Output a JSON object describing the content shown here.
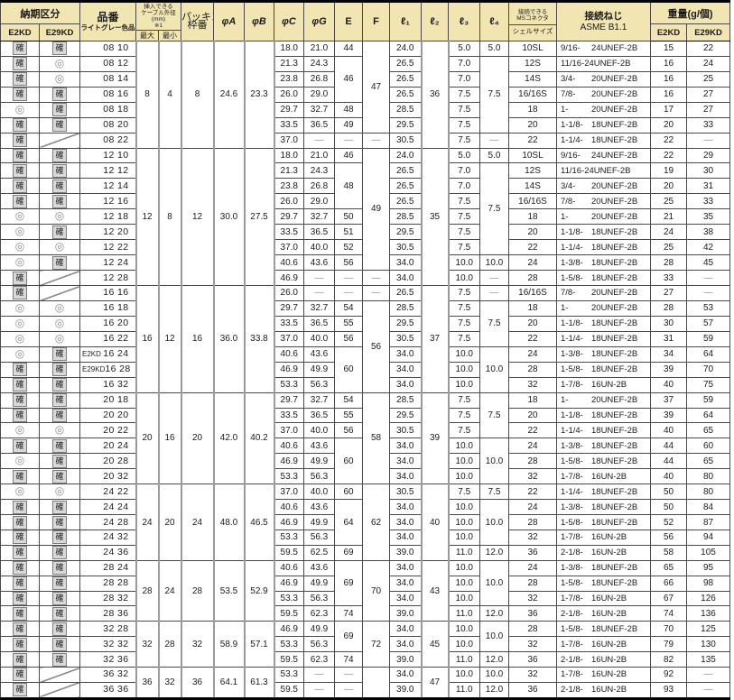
{
  "header": {
    "delivery_category": "納期区分",
    "delivery_e2kd": "E2KD",
    "delivery_e29kd": "E29KD",
    "part_no": "品番",
    "part_no_sub": "ライトグレー色品",
    "cable_line1": "挿入できる",
    "cable_line2": "ケーブル外径",
    "cable_line3": "(mm)",
    "cable_line4": "※1",
    "cable_max": "最大",
    "cable_min": "最小",
    "packing_line1": "パッキン",
    "packing_line2": "枠番",
    "phi_a": "φA",
    "phi_b": "φB",
    "phi_c": "φC",
    "phi_g": "φG",
    "dim_e": "E",
    "dim_f": "F",
    "l1": "ℓ₁",
    "l2": "ℓ₂",
    "l3": "ℓ₃",
    "l4": "ℓ₄",
    "ms_line1": "接続できる",
    "ms_line2": "MSコネクタ",
    "ms_shell": "シェルサイズ",
    "screw_line1": "接続ねじ",
    "screw_line2": "ASME B1.1",
    "weight": "重量(g/個)",
    "weight_e2kd": "E2KD",
    "weight_e29kd": "E29KD"
  },
  "symbols": {
    "kaku": "確",
    "circle": "◎"
  },
  "colors": {
    "header_bg": "#F1E6B2",
    "mark_box_bg": "#D9D9D9",
    "dash": "#8A8A8A",
    "border": "#4A4A4A"
  },
  "groups": [
    {
      "max": "8",
      "min": "4",
      "pack": "8",
      "pa": "24.6",
      "pb": "23.3",
      "l2": "36",
      "rows": [
        {
          "m1": "kaku",
          "m2": "kaku",
          "num": "08 10",
          "pc": "18.0",
          "pg": "21.0",
          "e": {
            "v": "44"
          },
          "f": {
            "v": "47",
            "rs": 6
          },
          "l1": "24.0",
          "l3": "5.0",
          "l4": {
            "v": "5.0"
          },
          "sh": "10SL",
          "th": "9/16- 24UNEF-2B",
          "w1": "15",
          "w2": "22"
        },
        {
          "m1": "kaku",
          "m2": "circle",
          "num": "08 12",
          "pc": "21.3",
          "pg": "24.3",
          "e": {
            "v": "46",
            "rs": 3
          },
          "l1": "26.5",
          "l3": "7.0",
          "l4": {
            "v": "7.5",
            "rs": 5
          },
          "sh": "12S",
          "th": "11/16-24UNEF-2B",
          "w1": "16",
          "w2": "24"
        },
        {
          "m1": "kaku",
          "m2": "circle",
          "num": "08 14",
          "pc": "23.8",
          "pg": "26.8",
          "l1": "26.5",
          "l3": "7.0",
          "sh": "14S",
          "th": "3/4- 20UNEF-2B",
          "w1": "16",
          "w2": "25"
        },
        {
          "m1": "kaku",
          "m2": "kaku",
          "num": "08 16",
          "pc": "26.0",
          "pg": "29.0",
          "l1": "26.5",
          "l3": "7.5",
          "sh": "16/16S",
          "th": "7/8- 20UNEF-2B",
          "w1": "16",
          "w2": "27"
        },
        {
          "m1": "circle",
          "m2": "kaku",
          "num": "08 18",
          "pc": "29.7",
          "pg": "32.7",
          "e": {
            "v": "48"
          },
          "l1": "28.5",
          "l3": "7.5",
          "sh": "18",
          "th": "1- 20UNEF-2B",
          "w1": "17",
          "w2": "27"
        },
        {
          "m1": "kaku",
          "m2": "kaku",
          "num": "08 20",
          "pc": "33.5",
          "pg": "36.5",
          "e": {
            "v": "49"
          },
          "l1": "29.5",
          "l3": "7.5",
          "sh": "20",
          "th": "1-1/8- 18UNEF-2B",
          "w1": "20",
          "w2": "33"
        },
        {
          "m1": "kaku",
          "m2": "slash",
          "num": "08 22",
          "pc": "37.0",
          "pg": "—",
          "e": {
            "v": "—"
          },
          "f": {
            "v": "—"
          },
          "l1": "30.5",
          "l3": "7.5",
          "l4": {
            "v": "—"
          },
          "sh": "22",
          "th": "1-1/4- 18UNEF-2B",
          "w1": "22",
          "w2": "—"
        }
      ]
    },
    {
      "max": "12",
      "min": "8",
      "pack": "12",
      "pa": "30.0",
      "pb": "27.5",
      "l2": "35",
      "rows": [
        {
          "m1": "kaku",
          "m2": "kaku",
          "num": "12 10",
          "pc": "18.0",
          "pg": "21.0",
          "e": {
            "v": "46"
          },
          "f": {
            "v": "49",
            "rs": 8
          },
          "l1": "24.0",
          "l3": "5.0",
          "l4": {
            "v": "5.0"
          },
          "sh": "10SL",
          "th": "9/16- 24UNEF-2B",
          "w1": "22",
          "w2": "29"
        },
        {
          "m1": "kaku",
          "m2": "kaku",
          "num": "12 12",
          "pc": "21.3",
          "pg": "24.3",
          "e": {
            "v": "48",
            "rs": 3
          },
          "l1": "26.5",
          "l3": "7.0",
          "l4": {
            "v": "7.5",
            "rs": 6
          },
          "sh": "12S",
          "th": "11/16-24UNEF-2B",
          "w1": "19",
          "w2": "30"
        },
        {
          "m1": "kaku",
          "m2": "kaku",
          "num": "12 14",
          "pc": "23.8",
          "pg": "26.8",
          "l1": "26.5",
          "l3": "7.0",
          "sh": "14S",
          "th": "3/4- 20UNEF-2B",
          "w1": "20",
          "w2": "31"
        },
        {
          "m1": "kaku",
          "m2": "kaku",
          "num": "12 16",
          "pc": "26.0",
          "pg": "29.0",
          "l1": "26.5",
          "l3": "7.5",
          "sh": "16/16S",
          "th": "7/8- 20UNEF-2B",
          "w1": "25",
          "w2": "33"
        },
        {
          "m1": "circle",
          "m2": "circle",
          "num": "12 18",
          "pc": "29.7",
          "pg": "32.7",
          "e": {
            "v": "50"
          },
          "l1": "28.5",
          "l3": "7.5",
          "sh": "18",
          "th": "1- 20UNEF-2B",
          "w1": "21",
          "w2": "35"
        },
        {
          "m1": "circle",
          "m2": "kaku",
          "num": "12 20",
          "pc": "33.5",
          "pg": "36.5",
          "e": {
            "v": "51"
          },
          "l1": "29.5",
          "l3": "7.5",
          "sh": "20",
          "th": "1-1/8- 18UNEF-2B",
          "w1": "24",
          "w2": "38"
        },
        {
          "m1": "circle",
          "m2": "circle",
          "num": "12 22",
          "pc": "37.0",
          "pg": "40.0",
          "e": {
            "v": "52"
          },
          "l1": "30.5",
          "l3": "7.5",
          "sh": "22",
          "th": "1-1/4- 18UNEF-2B",
          "w1": "25",
          "w2": "42"
        },
        {
          "m1": "circle",
          "m2": "kaku",
          "num": "12 24",
          "pc": "40.6",
          "pg": "43.6",
          "e": {
            "v": "56"
          },
          "l1": "34.0",
          "l3": "10.0",
          "l4": {
            "v": "10.0"
          },
          "sh": "24",
          "th": "1-3/8- 18UNEF-2B",
          "w1": "28",
          "w2": "45"
        },
        {
          "m1": "kaku",
          "m2": "slash",
          "num": "12 28",
          "pc": "46.9",
          "pg": "—",
          "e": {
            "v": "—"
          },
          "f": {
            "v": "—"
          },
          "l1": "34.0",
          "l3": "10.0",
          "l4": {
            "v": "—"
          },
          "sh": "28",
          "th": "1-5/8- 18UNEF-2B",
          "w1": "33",
          "w2": "—"
        }
      ]
    },
    {
      "max": "16",
      "min": "12",
      "pack": "16",
      "pa": "36.0",
      "pb": "33.8",
      "l2": "37",
      "rows": [
        {
          "m1": "kaku",
          "m2": "slash",
          "num": "16 16",
          "pc": "26.0",
          "pg": "—",
          "e": {
            "v": "—"
          },
          "f": {
            "v": "—"
          },
          "l1": "26.5",
          "l3": "7.5",
          "l4": {
            "v": "—"
          },
          "sh": "16/16S",
          "th": "7/8- 20UNEF-2B",
          "w1": "27",
          "w2": "—"
        },
        {
          "m1": "circle",
          "m2": "circle",
          "num": "16 18",
          "pc": "29.7",
          "pg": "32.7",
          "e": {
            "v": "54"
          },
          "f": {
            "v": "56",
            "rs": 6
          },
          "l1": "28.5",
          "l3": "7.5",
          "l4": {
            "v": "7.5",
            "rs": 3
          },
          "sh": "18",
          "th": "1- 20UNEF-2B",
          "w1": "28",
          "w2": "53"
        },
        {
          "m1": "circle",
          "m2": "circle",
          "num": "16 20",
          "pc": "33.5",
          "pg": "36.5",
          "e": {
            "v": "55"
          },
          "l1": "29.5",
          "l3": "7.5",
          "sh": "20",
          "th": "1-1/8- 18UNEF-2B",
          "w1": "30",
          "w2": "57"
        },
        {
          "m1": "circle",
          "m2": "circle",
          "num": "16 22",
          "pc": "37.0",
          "pg": "40.0",
          "e": {
            "v": "56"
          },
          "l1": "30.5",
          "l3": "7.5",
          "sh": "22",
          "th": "1-1/4- 18UNEF-2B",
          "w1": "31",
          "w2": "59"
        },
        {
          "m1": "circle",
          "m2": "kaku",
          "num": "16 24",
          "pfx": "E2KD",
          "pc": "40.6",
          "pg": "43.6",
          "e": {
            "v": "60",
            "rs": 3
          },
          "l1": "34.0",
          "l3": "10.0",
          "l4": {
            "v": "10.0",
            "rs": 3
          },
          "sh": "24",
          "th": "1-3/8- 18UNEF-2B",
          "w1": "34",
          "w2": "64"
        },
        {
          "m1": "kaku",
          "m2": "kaku",
          "num": "16 28",
          "pfx": "E29KD",
          "pc": "46.9",
          "pg": "49.9",
          "l1": "34.0",
          "l3": "10.0",
          "sh": "28",
          "th": "1-5/8- 18UNEF-2B",
          "w1": "39",
          "w2": "70"
        },
        {
          "m1": "kaku",
          "m2": "kaku",
          "num": "16 32",
          "pc": "53.3",
          "pg": "56.3",
          "l1": "34.0",
          "l3": "10.0",
          "sh": "32",
          "th": "1-7/8- 16UN-2B",
          "w1": "40",
          "w2": "75"
        }
      ]
    },
    {
      "max": "20",
      "min": "16",
      "pack": "20",
      "pa": "42.0",
      "pb": "40.2",
      "l2": "39",
      "rows": [
        {
          "m1": "kaku",
          "m2": "kaku",
          "num": "20 18",
          "pc": "29.7",
          "pg": "32.7",
          "e": {
            "v": "54"
          },
          "f": {
            "v": "58",
            "rs": 6
          },
          "l1": "28.5",
          "l3": "7.5",
          "l4": {
            "v": "7.5",
            "rs": 3
          },
          "sh": "18",
          "th": "1- 20UNEF-2B",
          "w1": "37",
          "w2": "59"
        },
        {
          "m1": "kaku",
          "m2": "kaku",
          "num": "20 20",
          "pc": "33.5",
          "pg": "36.5",
          "e": {
            "v": "55"
          },
          "l1": "29.5",
          "l3": "7.5",
          "sh": "20",
          "th": "1-1/8- 18UNEF-2B",
          "w1": "39",
          "w2": "64"
        },
        {
          "m1": "circle",
          "m2": "circle",
          "num": "20 22",
          "pc": "37.0",
          "pg": "40.0",
          "e": {
            "v": "56"
          },
          "l1": "30.5",
          "l3": "7.5",
          "sh": "22",
          "th": "1-1/4- 18UNEF-2B",
          "w1": "40",
          "w2": "65"
        },
        {
          "m1": "kaku",
          "m2": "kaku",
          "num": "20 24",
          "pc": "40.6",
          "pg": "43.6",
          "e": {
            "v": "60",
            "rs": 3
          },
          "l1": "34.0",
          "l3": "10.0",
          "l4": {
            "v": "10.0",
            "rs": 3
          },
          "sh": "24",
          "th": "1-3/8- 18UNEF-2B",
          "w1": "44",
          "w2": "60"
        },
        {
          "m1": "circle",
          "m2": "kaku",
          "num": "20 28",
          "pc": "46.9",
          "pg": "49.9",
          "l1": "34.0",
          "l3": "10.0",
          "sh": "28",
          "th": "1-5/8- 18UNEF-2B",
          "w1": "44",
          "w2": "65"
        },
        {
          "m1": "kaku",
          "m2": "kaku",
          "num": "20 32",
          "pc": "53.3",
          "pg": "56.3",
          "l1": "34.0",
          "l3": "10.0",
          "sh": "32",
          "th": "1-7/8- 16UN-2B",
          "w1": "40",
          "w2": "80"
        }
      ]
    },
    {
      "max": "24",
      "min": "20",
      "pack": "24",
      "pa": "48.0",
      "pb": "46.5",
      "l2": "40",
      "rows": [
        {
          "m1": "circle",
          "m2": "circle",
          "num": "24 22",
          "pc": "37.0",
          "pg": "40.0",
          "e": {
            "v": "60"
          },
          "f": {
            "v": "62",
            "rs": 5
          },
          "l1": "30.5",
          "l3": "7.5",
          "l4": {
            "v": "7.5"
          },
          "sh": "22",
          "th": "1-1/4- 18UNEF-2B",
          "w1": "50",
          "w2": "80"
        },
        {
          "m1": "kaku",
          "m2": "kaku",
          "num": "24 24",
          "pc": "40.6",
          "pg": "43.6",
          "e": {
            "v": "64",
            "rs": 3
          },
          "l1": "34.0",
          "l3": "10.0",
          "l4": {
            "v": "10.0",
            "rs": 3
          },
          "sh": "24",
          "th": "1-3/8- 18UNEF-2B",
          "w1": "50",
          "w2": "84"
        },
        {
          "m1": "kaku",
          "m2": "kaku",
          "num": "24 28",
          "pc": "46.9",
          "pg": "49.9",
          "l1": "34.0",
          "l3": "10.0",
          "sh": "28",
          "th": "1-5/8- 18UNEF-2B",
          "w1": "52",
          "w2": "87"
        },
        {
          "m1": "kaku",
          "m2": "kaku",
          "num": "24 32",
          "pc": "53.3",
          "pg": "56.3",
          "l1": "34.0",
          "l3": "10.0",
          "sh": "32",
          "th": "1-7/8- 16UN-2B",
          "w1": "56",
          "w2": "94"
        },
        {
          "m1": "kaku",
          "m2": "kaku",
          "num": "24 36",
          "pc": "59.5",
          "pg": "62.5",
          "e": {
            "v": "69"
          },
          "l1": "39.0",
          "l3": "11.0",
          "l4": {
            "v": "12.0"
          },
          "sh": "36",
          "th": "2-1/8- 16UN-2B",
          "w1": "58",
          "w2": "105"
        }
      ]
    },
    {
      "max": "28",
      "min": "24",
      "pack": "28",
      "pa": "53.5",
      "pb": "52.9",
      "l2": "43",
      "rows": [
        {
          "m1": "kaku",
          "m2": "kaku",
          "num": "28 24",
          "pc": "40.6",
          "pg": "43.6",
          "e": {
            "v": "69",
            "rs": 3
          },
          "f": {
            "v": "70",
            "rs": 4
          },
          "l1": "34.0",
          "l3": "10.0",
          "l4": {
            "v": "10.0",
            "rs": 3
          },
          "sh": "24",
          "th": "1-3/8- 18UNEF-2B",
          "w1": "65",
          "w2": "95"
        },
        {
          "m1": "kaku",
          "m2": "kaku",
          "num": "28 28",
          "pc": "46.9",
          "pg": "49.9",
          "l1": "34.0",
          "l3": "10.0",
          "sh": "28",
          "th": "1-5/8- 18UNEF-2B",
          "w1": "66",
          "w2": "98"
        },
        {
          "m1": "kaku",
          "m2": "kaku",
          "num": "28 32",
          "pc": "53.3",
          "pg": "56.3",
          "l1": "34.0",
          "l3": "10.0",
          "sh": "32",
          "th": "1-7/8- 16UN-2B",
          "w1": "67",
          "w2": "126"
        },
        {
          "m1": "kaku",
          "m2": "kaku",
          "num": "28 36",
          "pc": "59.5",
          "pg": "62.3",
          "e": {
            "v": "74"
          },
          "l1": "39.0",
          "l3": "11.0",
          "l4": {
            "v": "12.0"
          },
          "sh": "36",
          "th": "2-1/8- 16UN-2B",
          "w1": "74",
          "w2": "136"
        }
      ]
    },
    {
      "max": "32",
      "min": "28",
      "pack": "32",
      "pa": "58.9",
      "pb": "57.1",
      "l2": "45",
      "rows": [
        {
          "m1": "kaku",
          "m2": "kaku",
          "num": "32 28",
          "pc": "46.9",
          "pg": "49.9",
          "e": {
            "v": "69",
            "rs": 2
          },
          "f": {
            "v": "72",
            "rs": 3
          },
          "l1": "34.0",
          "l3": "10.0",
          "l4": {
            "v": "10.0",
            "rs": 2
          },
          "sh": "28",
          "th": "1-5/8- 18UNEF-2B",
          "w1": "70",
          "w2": "125"
        },
        {
          "m1": "kaku",
          "m2": "kaku",
          "num": "32 32",
          "pc": "53.3",
          "pg": "56.3",
          "l1": "34.0",
          "l3": "10.0",
          "sh": "32",
          "th": "1-7/8- 16UN-2B",
          "w1": "79",
          "w2": "130"
        },
        {
          "m1": "kaku",
          "m2": "kaku",
          "num": "32 36",
          "pc": "59.5",
          "pg": "62.3",
          "e": {
            "v": "74"
          },
          "l1": "39.0",
          "l3": "11.0",
          "l4": {
            "v": "12.0"
          },
          "sh": "36",
          "th": "2-1/8- 16UN-2B",
          "w1": "82",
          "w2": "135"
        }
      ]
    },
    {
      "max": "36",
      "min": "32",
      "pack": "36",
      "pa": "64.1",
      "pb": "61.3",
      "l2": "47",
      "rows": [
        {
          "m1": "kaku",
          "m2": "slash",
          "num": "36 32",
          "pc": "53.3",
          "pg": "—",
          "e": {
            "v": "—"
          },
          "f": {
            "v": "",
            "rs": 2
          },
          "l1": "34.0",
          "l3": "10.0",
          "l4": {
            "v": "10.0"
          },
          "sh": "32",
          "th": "1-7/8- 16UN-2B",
          "w1": "92",
          "w2": "—"
        },
        {
          "m1": "kaku",
          "m2": "slash",
          "num": "36 36",
          "pc": "59.5",
          "pg": "—",
          "e": {
            "v": "—"
          },
          "l1": "39.0",
          "l3": "11.0",
          "l4": {
            "v": "12.0"
          },
          "sh": "36",
          "th": "2-1/8- 16UN-2B",
          "w1": "93",
          "w2": "—"
        }
      ]
    }
  ]
}
